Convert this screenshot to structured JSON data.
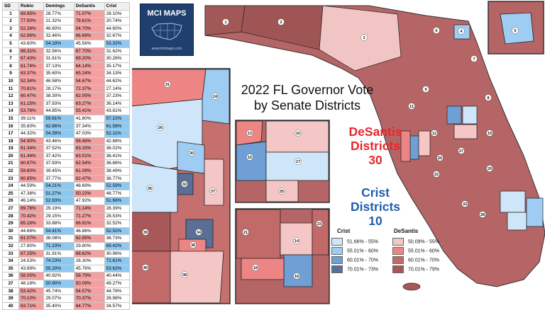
{
  "table": {
    "headers": [
      "SD",
      "Rubio",
      "Demings",
      "DeSantis",
      "Crist"
    ],
    "rows": [
      [
        "1",
        "69.95%",
        "28.77%",
        "71.07%",
        "28.10%"
      ],
      [
        "2",
        "77.50%",
        "21.32%",
        "78.61%",
        "20.74%"
      ],
      [
        "3",
        "52.26%",
        "46.60%",
        "54.70%",
        "44.60%"
      ],
      [
        "4",
        "62.96%",
        "32.46%",
        "66.69%",
        "32.67%"
      ],
      [
        "5",
        "43.60%",
        "54.19%",
        "45.56%",
        "53.32%"
      ],
      [
        "6",
        "66.31%",
        "32.56%",
        "67.70%",
        "31.62%"
      ],
      [
        "7",
        "67.43%",
        "31.61%",
        "69.20%",
        "30.26%"
      ],
      [
        "8",
        "61.74%",
        "37.13%",
        "64.14%",
        "35.17%"
      ],
      [
        "9",
        "63.37%",
        "35.60%",
        "65.24%",
        "34.13%"
      ],
      [
        "10",
        "52.34%",
        "46.58%",
        "54.67%",
        "44.62%"
      ],
      [
        "11",
        "70.81%",
        "28.17%",
        "72.37%",
        "27.14%"
      ],
      [
        "12",
        "60.47%",
        "38.30%",
        "62.05%",
        "37.23%"
      ],
      [
        "13",
        "61.15%",
        "37.93%",
        "63.27%",
        "36.14%"
      ],
      [
        "14",
        "53.76%",
        "44.85%",
        "55.41%",
        "43.81%"
      ],
      [
        "15",
        "39.11%",
        "59.81%",
        "41.80%",
        "57.22%"
      ],
      [
        "16",
        "35.60%",
        "62.86%",
        "37.34%",
        "61.58%"
      ],
      [
        "17",
        "44.32%",
        "54.39%",
        "47.03%",
        "52.11%"
      ],
      [
        "18",
        "54.90%",
        "43.46%",
        "56.46%",
        "42.88%"
      ],
      [
        "19",
        "61.34%",
        "37.52%",
        "63.33%",
        "36.02%"
      ],
      [
        "20",
        "61.44%",
        "37.42%",
        "63.01%",
        "36.41%"
      ],
      [
        "21",
        "60.67%",
        "37.93%",
        "62.54%",
        "36.86%"
      ],
      [
        "22",
        "59.60%",
        "39.45%",
        "61.09%",
        "38.49%"
      ],
      [
        "23",
        "60.85%",
        "37.77%",
        "62.47%",
        "36.77%"
      ],
      [
        "24",
        "44.59%",
        "54.21%",
        "46.69%",
        "52.59%"
      ],
      [
        "25",
        "47.38%",
        "51.27%",
        "50.22%",
        "48.77%"
      ],
      [
        "26",
        "46.14%",
        "52.93%",
        "47.92%",
        "51.66%"
      ],
      [
        "27",
        "69.76%",
        "29.19%",
        "71.14%",
        "28.39%"
      ],
      [
        "28",
        "70.42%",
        "29.15%",
        "71.27%",
        "28.53%"
      ],
      [
        "29",
        "65.16%",
        "33.88%",
        "66.91%",
        "32.52%"
      ],
      [
        "30",
        "44.66%",
        "54.41%",
        "46.86%",
        "52.52%"
      ],
      [
        "31",
        "61.07%",
        "38.08%",
        "62.85%",
        "36.73%"
      ],
      [
        "32",
        "27.80%",
        "71.23%",
        "29.80%",
        "69.42%"
      ],
      [
        "33",
        "67.25%",
        "31.91%",
        "68.62%",
        "30.96%"
      ],
      [
        "34",
        "24.53%",
        "74.23%",
        "26.30%",
        "72.61%"
      ],
      [
        "35",
        "43.89%",
        "55.20%",
        "45.76%",
        "53.62%"
      ],
      [
        "36",
        "58.05%",
        "40.92%",
        "58.79%",
        "40.44%"
      ],
      [
        "37",
        "48.18%",
        "50.90%",
        "50.09%",
        "49.27%"
      ],
      [
        "38",
        "53.42%",
        "45.74%",
        "54.57%",
        "44.78%"
      ],
      [
        "39",
        "70.10%",
        "29.07%",
        "70.37%",
        "28.98%"
      ],
      [
        "40",
        "63.71%",
        "35.40%",
        "64.77%",
        "34.57%"
      ]
    ]
  },
  "logo": {
    "title": "MCI MAPS",
    "url": "www.mcimaps.com"
  },
  "title_lines": [
    "2022 FL Governor Vote",
    "by Senate Districts"
  ],
  "desantis_block": [
    "DeSantis",
    "Districts",
    "30"
  ],
  "crist_block": [
    "Crist",
    "Districts",
    "10"
  ],
  "legend": {
    "crist_header": "Crist",
    "desantis_header": "DeSantis",
    "crist_items": [
      "51.66% - 55%",
      "55.01% - 60%",
      "60.01% - 70%",
      "70.01% - 73%"
    ],
    "desantis_items": [
      "50.09% - 55%",
      "55.01% - 60%",
      "60.01% - 70%",
      "70.01% - 79%"
    ],
    "crist_colors": [
      "#cfe6fa",
      "#9fccf2",
      "#6f9fd4",
      "#5a6f95"
    ],
    "desantis_colors": [
      "#f5c6c6",
      "#ee8585",
      "#c26a6a",
      "#a85858"
    ]
  },
  "colors": {
    "desantis_accent": "#e8262c",
    "crist_accent": "#1f5fae",
    "table_red": "#f4a0a0",
    "table_blue": "#8cc9f2"
  },
  "district_labels": [
    "1",
    "2",
    "3",
    "4",
    "5",
    "6",
    "7",
    "8",
    "9",
    "10",
    "11",
    "12",
    "13",
    "14",
    "15",
    "16",
    "17",
    "18",
    "19",
    "20",
    "21",
    "22",
    "23",
    "24",
    "25",
    "26",
    "27",
    "28",
    "29",
    "30",
    "31",
    "32",
    "33",
    "34",
    "35",
    "36",
    "37",
    "38",
    "39",
    "40"
  ]
}
